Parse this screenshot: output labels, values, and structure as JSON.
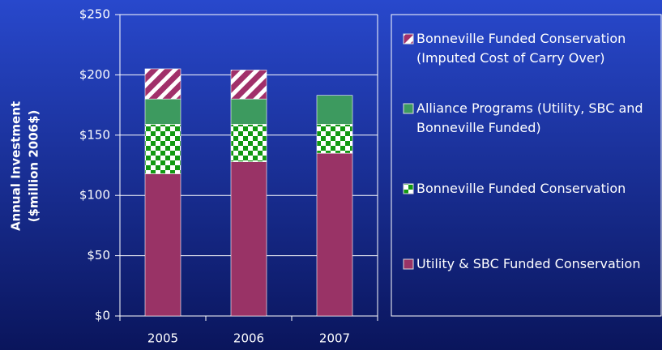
{
  "chart_data": {
    "type": "stacked_bar",
    "y_label": [
      "Annual Investment",
      "($million 2006$)"
    ],
    "categories": [
      "2005",
      "2006",
      "2007"
    ],
    "series": [
      {
        "name": "Utility & SBC Funded Conservation",
        "color": "#993366",
        "pattern": "solid",
        "values": [
          118,
          128,
          135
        ]
      },
      {
        "name": "Bonneville Funded Conservation",
        "color": "#119911",
        "pattern": "checker",
        "values": [
          41,
          31,
          24
        ]
      },
      {
        "name": "Alliance Programs (Utility, SBC and Bonneville Funded)",
        "color": "#3d9a5f",
        "pattern": "solid",
        "values": [
          21,
          21,
          24
        ]
      },
      {
        "name": "Bonneville Funded Conservation (Imputed Cost of Carry Over)",
        "color": "#a1306a",
        "pattern": "hatch",
        "values": [
          25,
          24,
          0
        ]
      }
    ],
    "ylim": [
      0,
      250
    ],
    "yticks": [
      {
        "value": 0,
        "label": "$0"
      },
      {
        "value": 50,
        "label": "$50"
      },
      {
        "value": 100,
        "label": "$100"
      },
      {
        "value": 150,
        "label": "$150"
      },
      {
        "value": 200,
        "label": "$200"
      },
      {
        "value": 250,
        "label": "$250"
      }
    ],
    "grid": true
  }
}
